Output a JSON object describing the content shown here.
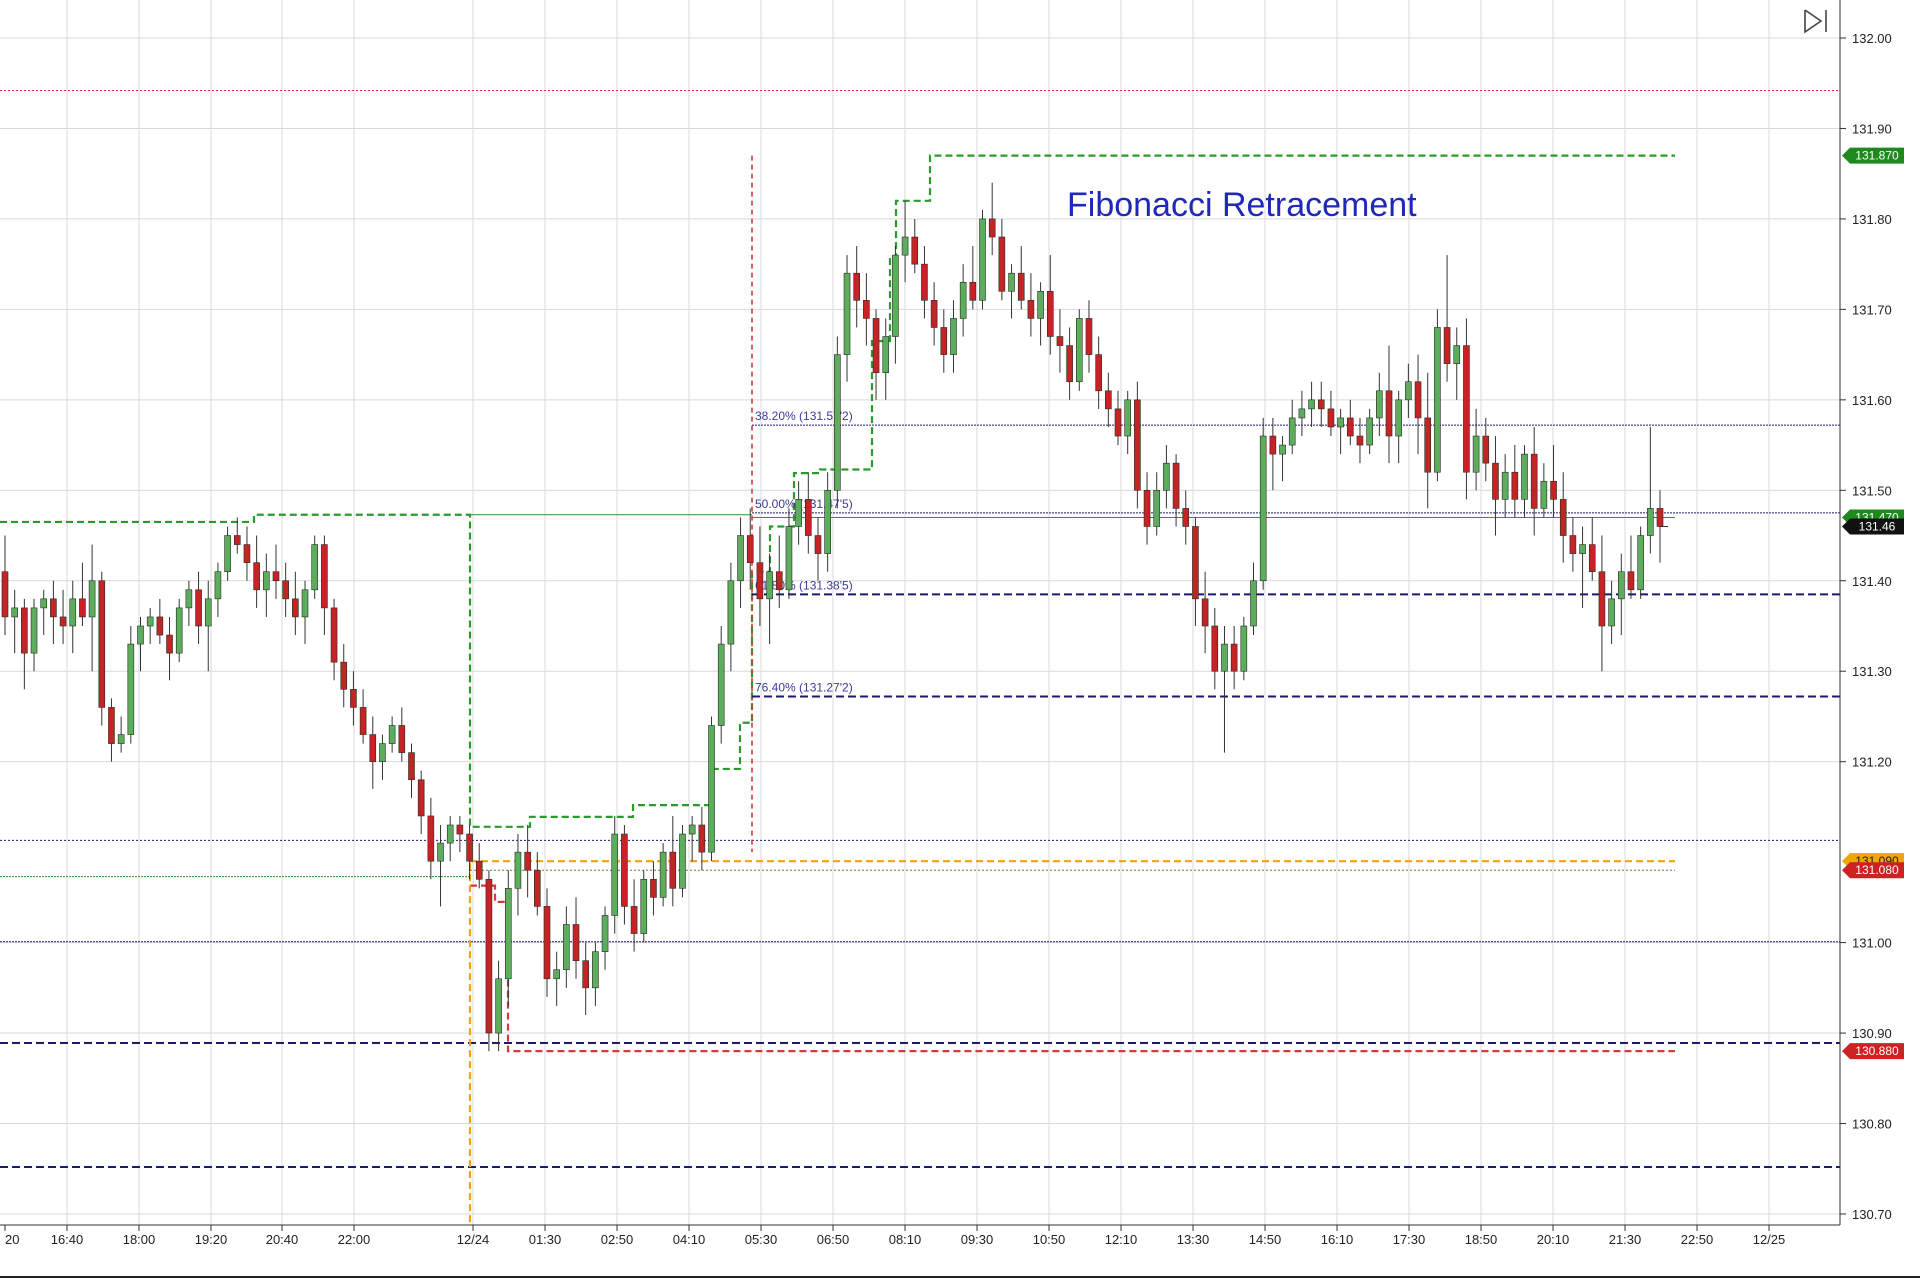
{
  "chart_data": {
    "type": "candlestick",
    "title": "Fibonacci Retracement",
    "x_tick_labels": [
      "20",
      "16:40",
      "18:00",
      "19:20",
      "20:40",
      "22:00",
      "12/24",
      "01:30",
      "02:50",
      "04:10",
      "05:30",
      "06:50",
      "08:10",
      "09:30",
      "10:50",
      "12:10",
      "13:30",
      "14:50",
      "16:10",
      "17:30",
      "18:50",
      "20:10",
      "21:30",
      "22:50",
      "12/25"
    ],
    "y_tick_labels": [
      "132.00",
      "131.90",
      "131.80",
      "131.70",
      "131.60",
      "131.50",
      "131.40",
      "131.30",
      "131.20",
      "131.00",
      "130.90",
      "130.80",
      "130.70"
    ],
    "ylim": [
      130.7,
      132.0
    ],
    "fib_levels": [
      {
        "label": "38.20% (131.57'2)",
        "value": 131.572
      },
      {
        "label": "50.00% (131.47'5)",
        "value": 131.475
      },
      {
        "label": "61.80% (131.38'5)",
        "value": 131.385
      },
      {
        "label": "76.40% (131.27'2)",
        "value": 131.272
      }
    ],
    "price_badges": [
      {
        "text": "131.870",
        "value": 131.87,
        "color": "#1e8a1e"
      },
      {
        "text": "131.470",
        "value": 131.47,
        "color": "#1e8a1e"
      },
      {
        "text": "131.46",
        "value": 131.46,
        "color": "#111111"
      },
      {
        "text": "131.090",
        "value": 131.09,
        "color": "#f0a500"
      },
      {
        "text": "131.080",
        "value": 131.08,
        "color": "#cc2222"
      },
      {
        "text": "130.880",
        "value": 130.88,
        "color": "#cc2222"
      }
    ],
    "candles": [
      [
        131.41,
        131.45,
        131.34,
        131.36
      ],
      [
        131.36,
        131.39,
        131.32,
        131.37
      ],
      [
        131.37,
        131.38,
        131.28,
        131.32
      ],
      [
        131.32,
        131.38,
        131.3,
        131.37
      ],
      [
        131.37,
        131.39,
        131.34,
        131.38
      ],
      [
        131.38,
        131.4,
        131.33,
        131.36
      ],
      [
        131.36,
        131.39,
        131.33,
        131.35
      ],
      [
        131.35,
        131.4,
        131.32,
        131.38
      ],
      [
        131.38,
        131.42,
        131.35,
        131.36
      ],
      [
        131.36,
        131.44,
        131.3,
        131.4
      ],
      [
        131.4,
        131.41,
        131.24,
        131.26
      ],
      [
        131.26,
        131.27,
        131.2,
        131.22
      ],
      [
        131.22,
        131.25,
        131.21,
        131.23
      ],
      [
        131.23,
        131.35,
        131.22,
        131.33
      ],
      [
        131.33,
        131.36,
        131.3,
        131.35
      ],
      [
        131.35,
        131.37,
        131.33,
        131.36
      ],
      [
        131.36,
        131.38,
        131.33,
        131.34
      ],
      [
        131.34,
        131.36,
        131.29,
        131.32
      ],
      [
        131.32,
        131.38,
        131.31,
        131.37
      ],
      [
        131.37,
        131.4,
        131.35,
        131.39
      ],
      [
        131.39,
        131.41,
        131.33,
        131.35
      ],
      [
        131.35,
        131.4,
        131.3,
        131.38
      ],
      [
        131.38,
        131.42,
        131.36,
        131.41
      ],
      [
        131.41,
        131.46,
        131.4,
        131.45
      ],
      [
        131.45,
        131.47,
        131.43,
        131.44
      ],
      [
        131.44,
        131.46,
        131.4,
        131.42
      ],
      [
        131.42,
        131.45,
        131.37,
        131.39
      ],
      [
        131.39,
        131.43,
        131.36,
        131.41
      ],
      [
        131.41,
        131.44,
        131.38,
        131.4
      ],
      [
        131.4,
        131.42,
        131.36,
        131.38
      ],
      [
        131.38,
        131.41,
        131.34,
        131.36
      ],
      [
        131.36,
        131.4,
        131.33,
        131.39
      ],
      [
        131.39,
        131.45,
        131.38,
        131.44
      ],
      [
        131.44,
        131.45,
        131.34,
        131.37
      ],
      [
        131.37,
        131.38,
        131.29,
        131.31
      ],
      [
        131.31,
        131.33,
        131.26,
        131.28
      ],
      [
        131.28,
        131.3,
        131.24,
        131.26
      ],
      [
        131.26,
        131.28,
        131.22,
        131.23
      ],
      [
        131.23,
        131.25,
        131.17,
        131.2
      ],
      [
        131.2,
        131.23,
        131.18,
        131.22
      ],
      [
        131.22,
        131.25,
        131.21,
        131.24
      ],
      [
        131.24,
        131.26,
        131.2,
        131.21
      ],
      [
        131.21,
        131.22,
        131.16,
        131.18
      ],
      [
        131.18,
        131.19,
        131.12,
        131.14
      ],
      [
        131.14,
        131.16,
        131.07,
        131.09
      ],
      [
        131.09,
        131.13,
        131.04,
        131.11
      ],
      [
        131.11,
        131.14,
        131.09,
        131.13
      ],
      [
        131.13,
        131.14,
        131.1,
        131.12
      ],
      [
        131.12,
        131.13,
        131.07,
        131.09
      ],
      [
        131.09,
        131.11,
        131.06,
        131.07
      ],
      [
        131.07,
        131.08,
        130.88,
        130.9
      ],
      [
        130.9,
        130.98,
        130.88,
        130.96
      ],
      [
        130.96,
        131.08,
        130.93,
        131.06
      ],
      [
        131.06,
        131.12,
        131.03,
        131.1
      ],
      [
        131.1,
        131.13,
        131.05,
        131.08
      ],
      [
        131.08,
        131.1,
        131.03,
        131.04
      ],
      [
        131.04,
        131.06,
        130.94,
        130.96
      ],
      [
        130.96,
        130.99,
        130.93,
        130.97
      ],
      [
        130.97,
        131.04,
        130.95,
        131.02
      ],
      [
        131.02,
        131.05,
        130.96,
        130.98
      ],
      [
        130.98,
        131.0,
        130.92,
        130.95
      ],
      [
        130.95,
        131.0,
        130.93,
        130.99
      ],
      [
        130.99,
        131.04,
        130.97,
        131.03
      ],
      [
        131.03,
        131.14,
        131.01,
        131.12
      ],
      [
        131.12,
        131.13,
        131.02,
        131.04
      ],
      [
        131.04,
        131.07,
        130.99,
        131.01
      ],
      [
        131.01,
        131.08,
        131.0,
        131.07
      ],
      [
        131.07,
        131.09,
        131.03,
        131.05
      ],
      [
        131.05,
        131.11,
        131.04,
        131.1
      ],
      [
        131.1,
        131.14,
        131.04,
        131.06
      ],
      [
        131.06,
        131.13,
        131.05,
        131.12
      ],
      [
        131.12,
        131.14,
        131.09,
        131.13
      ],
      [
        131.13,
        131.15,
        131.08,
        131.1
      ],
      [
        131.1,
        131.25,
        131.09,
        131.24
      ],
      [
        131.24,
        131.35,
        131.22,
        131.33
      ],
      [
        131.33,
        131.42,
        131.3,
        131.4
      ],
      [
        131.4,
        131.47,
        131.37,
        131.45
      ],
      [
        131.45,
        131.48,
        131.39,
        131.42
      ],
      [
        131.42,
        131.46,
        131.35,
        131.38
      ],
      [
        131.38,
        131.43,
        131.33,
        131.41
      ],
      [
        131.41,
        131.45,
        131.37,
        131.39
      ],
      [
        131.39,
        131.48,
        131.38,
        131.46
      ],
      [
        131.46,
        131.51,
        131.44,
        131.49
      ],
      [
        131.49,
        131.52,
        131.43,
        131.45
      ],
      [
        131.45,
        131.47,
        131.4,
        131.43
      ],
      [
        131.43,
        131.52,
        131.41,
        131.5
      ],
      [
        131.5,
        131.67,
        131.48,
        131.65
      ],
      [
        131.65,
        131.76,
        131.62,
        131.74
      ],
      [
        131.74,
        131.77,
        131.68,
        131.71
      ],
      [
        131.71,
        131.74,
        131.66,
        131.69
      ],
      [
        131.69,
        131.7,
        131.6,
        131.63
      ],
      [
        131.63,
        131.69,
        131.6,
        131.67
      ],
      [
        131.67,
        131.77,
        131.64,
        131.76
      ],
      [
        131.76,
        131.82,
        131.73,
        131.78
      ],
      [
        131.78,
        131.8,
        131.74,
        131.75
      ],
      [
        131.75,
        131.77,
        131.69,
        131.71
      ],
      [
        131.71,
        131.73,
        131.66,
        131.68
      ],
      [
        131.68,
        131.7,
        131.63,
        131.65
      ],
      [
        131.65,
        131.71,
        131.63,
        131.69
      ],
      [
        131.69,
        131.75,
        131.67,
        131.73
      ],
      [
        131.73,
        131.77,
        131.7,
        131.71
      ],
      [
        131.71,
        131.81,
        131.7,
        131.8
      ],
      [
        131.8,
        131.84,
        131.76,
        131.78
      ],
      [
        131.78,
        131.8,
        131.71,
        131.72
      ],
      [
        131.72,
        131.75,
        131.69,
        131.74
      ],
      [
        131.74,
        131.77,
        131.7,
        131.71
      ],
      [
        131.71,
        131.74,
        131.67,
        131.69
      ],
      [
        131.69,
        131.73,
        131.66,
        131.72
      ],
      [
        131.72,
        131.76,
        131.65,
        131.67
      ],
      [
        131.67,
        131.7,
        131.63,
        131.66
      ],
      [
        131.66,
        131.68,
        131.6,
        131.62
      ],
      [
        131.62,
        131.7,
        131.61,
        131.69
      ],
      [
        131.69,
        131.71,
        131.63,
        131.65
      ],
      [
        131.65,
        131.67,
        131.59,
        131.61
      ],
      [
        131.61,
        131.63,
        131.57,
        131.59
      ],
      [
        131.59,
        131.61,
        131.55,
        131.56
      ],
      [
        131.56,
        131.61,
        131.54,
        131.6
      ],
      [
        131.6,
        131.62,
        131.48,
        131.5
      ],
      [
        131.5,
        131.52,
        131.44,
        131.46
      ],
      [
        131.46,
        131.52,
        131.45,
        131.5
      ],
      [
        131.5,
        131.55,
        131.48,
        131.53
      ],
      [
        131.53,
        131.54,
        131.46,
        131.48
      ],
      [
        131.48,
        131.5,
        131.44,
        131.46
      ],
      [
        131.46,
        131.47,
        131.35,
        131.38
      ],
      [
        131.38,
        131.41,
        131.32,
        131.35
      ],
      [
        131.35,
        131.37,
        131.28,
        131.3
      ],
      [
        131.3,
        131.35,
        131.21,
        131.33
      ],
      [
        131.33,
        131.35,
        131.28,
        131.3
      ],
      [
        131.3,
        131.36,
        131.29,
        131.35
      ],
      [
        131.35,
        131.42,
        131.34,
        131.4
      ],
      [
        131.4,
        131.58,
        131.39,
        131.56
      ],
      [
        131.56,
        131.58,
        131.5,
        131.54
      ],
      [
        131.54,
        131.56,
        131.51,
        131.55
      ],
      [
        131.55,
        131.6,
        131.54,
        131.58
      ],
      [
        131.58,
        131.61,
        131.56,
        131.59
      ],
      [
        131.59,
        131.62,
        131.57,
        131.6
      ],
      [
        131.6,
        131.62,
        131.57,
        131.59
      ],
      [
        131.59,
        131.61,
        131.56,
        131.57
      ],
      [
        131.57,
        131.59,
        131.54,
        131.58
      ],
      [
        131.58,
        131.6,
        131.55,
        131.56
      ],
      [
        131.56,
        131.58,
        131.53,
        131.55
      ],
      [
        131.55,
        131.59,
        131.54,
        131.58
      ],
      [
        131.58,
        131.63,
        131.56,
        131.61
      ],
      [
        131.61,
        131.66,
        131.53,
        131.56
      ],
      [
        131.56,
        131.61,
        131.53,
        131.6
      ],
      [
        131.6,
        131.64,
        131.58,
        131.62
      ],
      [
        131.62,
        131.65,
        131.54,
        131.58
      ],
      [
        131.58,
        131.63,
        131.48,
        131.52
      ],
      [
        131.52,
        131.7,
        131.51,
        131.68
      ],
      [
        131.68,
        131.76,
        131.62,
        131.64
      ],
      [
        131.64,
        131.68,
        131.6,
        131.66
      ],
      [
        131.66,
        131.69,
        131.49,
        131.52
      ],
      [
        131.52,
        131.59,
        131.5,
        131.56
      ],
      [
        131.56,
        131.58,
        131.51,
        131.53
      ],
      [
        131.53,
        131.56,
        131.45,
        131.49
      ],
      [
        131.49,
        131.54,
        131.47,
        131.52
      ],
      [
        131.52,
        131.55,
        131.47,
        131.49
      ],
      [
        131.49,
        131.55,
        131.47,
        131.54
      ],
      [
        131.54,
        131.57,
        131.45,
        131.48
      ],
      [
        131.48,
        131.53,
        131.47,
        131.51
      ],
      [
        131.51,
        131.55,
        131.47,
        131.49
      ],
      [
        131.49,
        131.52,
        131.42,
        131.45
      ],
      [
        131.45,
        131.47,
        131.41,
        131.43
      ],
      [
        131.43,
        131.46,
        131.37,
        131.44
      ],
      [
        131.44,
        131.47,
        131.4,
        131.41
      ],
      [
        131.41,
        131.45,
        131.3,
        131.35
      ],
      [
        131.35,
        131.4,
        131.33,
        131.38
      ],
      [
        131.38,
        131.43,
        131.34,
        131.41
      ],
      [
        131.41,
        131.45,
        131.38,
        131.39
      ],
      [
        131.39,
        131.46,
        131.38,
        131.45
      ],
      [
        131.45,
        131.57,
        131.43,
        131.48
      ],
      [
        131.48,
        131.5,
        131.42,
        131.46
      ]
    ]
  },
  "ui": {
    "nav_icon": "skip-to-end-icon",
    "colors": {
      "up_candle": "#5cae5c",
      "down_candle": "#c42424",
      "fib_line": "#1a1a6e",
      "green_dash": "#2a9a2a",
      "red_dash": "#d63a3a",
      "orange_dash": "#f2a20c",
      "grid": "#d9d9d9"
    }
  }
}
